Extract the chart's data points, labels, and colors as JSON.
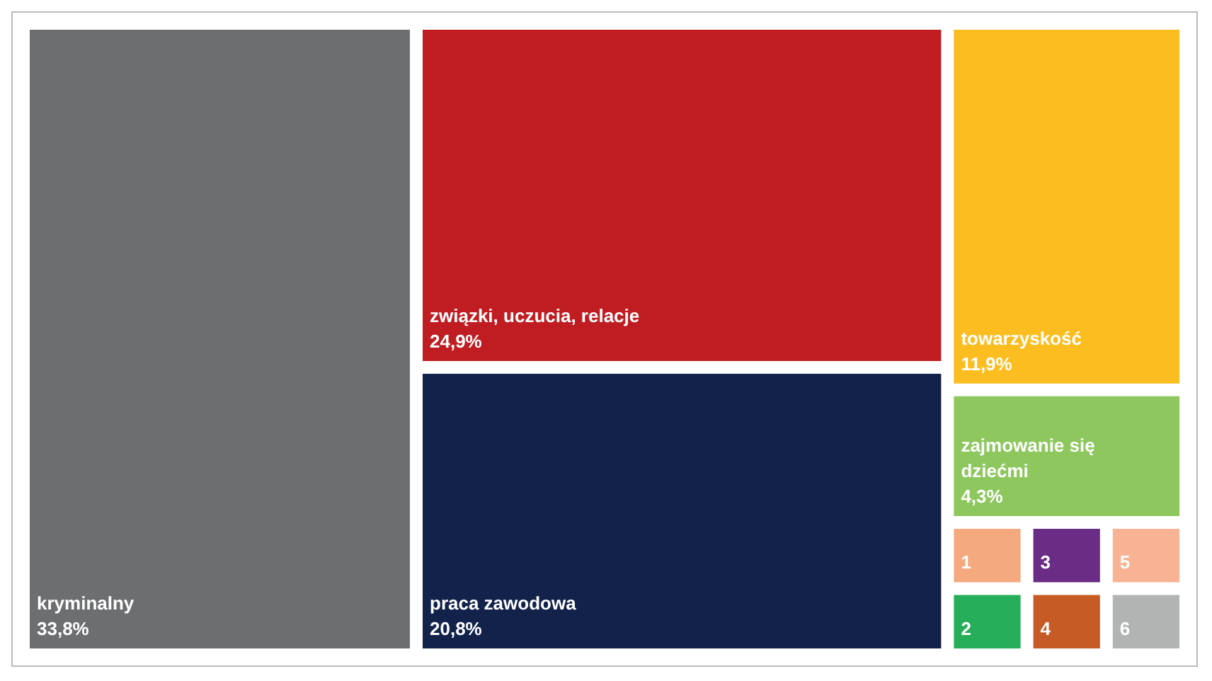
{
  "chart_data": {
    "type": "other",
    "categories": [
      "kryminalny",
      "związki, uczucia, relacje",
      "praca zawodowa",
      "towarzyskość",
      "zajmowanie się dziećmi",
      "1",
      "2",
      "3",
      "4",
      "5",
      "6"
    ],
    "values": [
      33.8,
      24.9,
      20.8,
      11.9,
      4.3,
      null,
      null,
      null,
      null,
      null,
      null
    ],
    "value_labels": [
      "33,8%",
      "24,9%",
      "20,8%",
      "11,9%",
      "4,3%",
      null,
      null,
      null,
      null,
      null,
      null
    ],
    "colors": [
      "#6d6e70",
      "#c01d22",
      "#12224a",
      "#fbbd1f",
      "#8dc75e",
      "#f4a97f",
      "#27ae5a",
      "#6a2c85",
      "#c75b25",
      "#f7b393",
      "#b2b3b3"
    ]
  }
}
